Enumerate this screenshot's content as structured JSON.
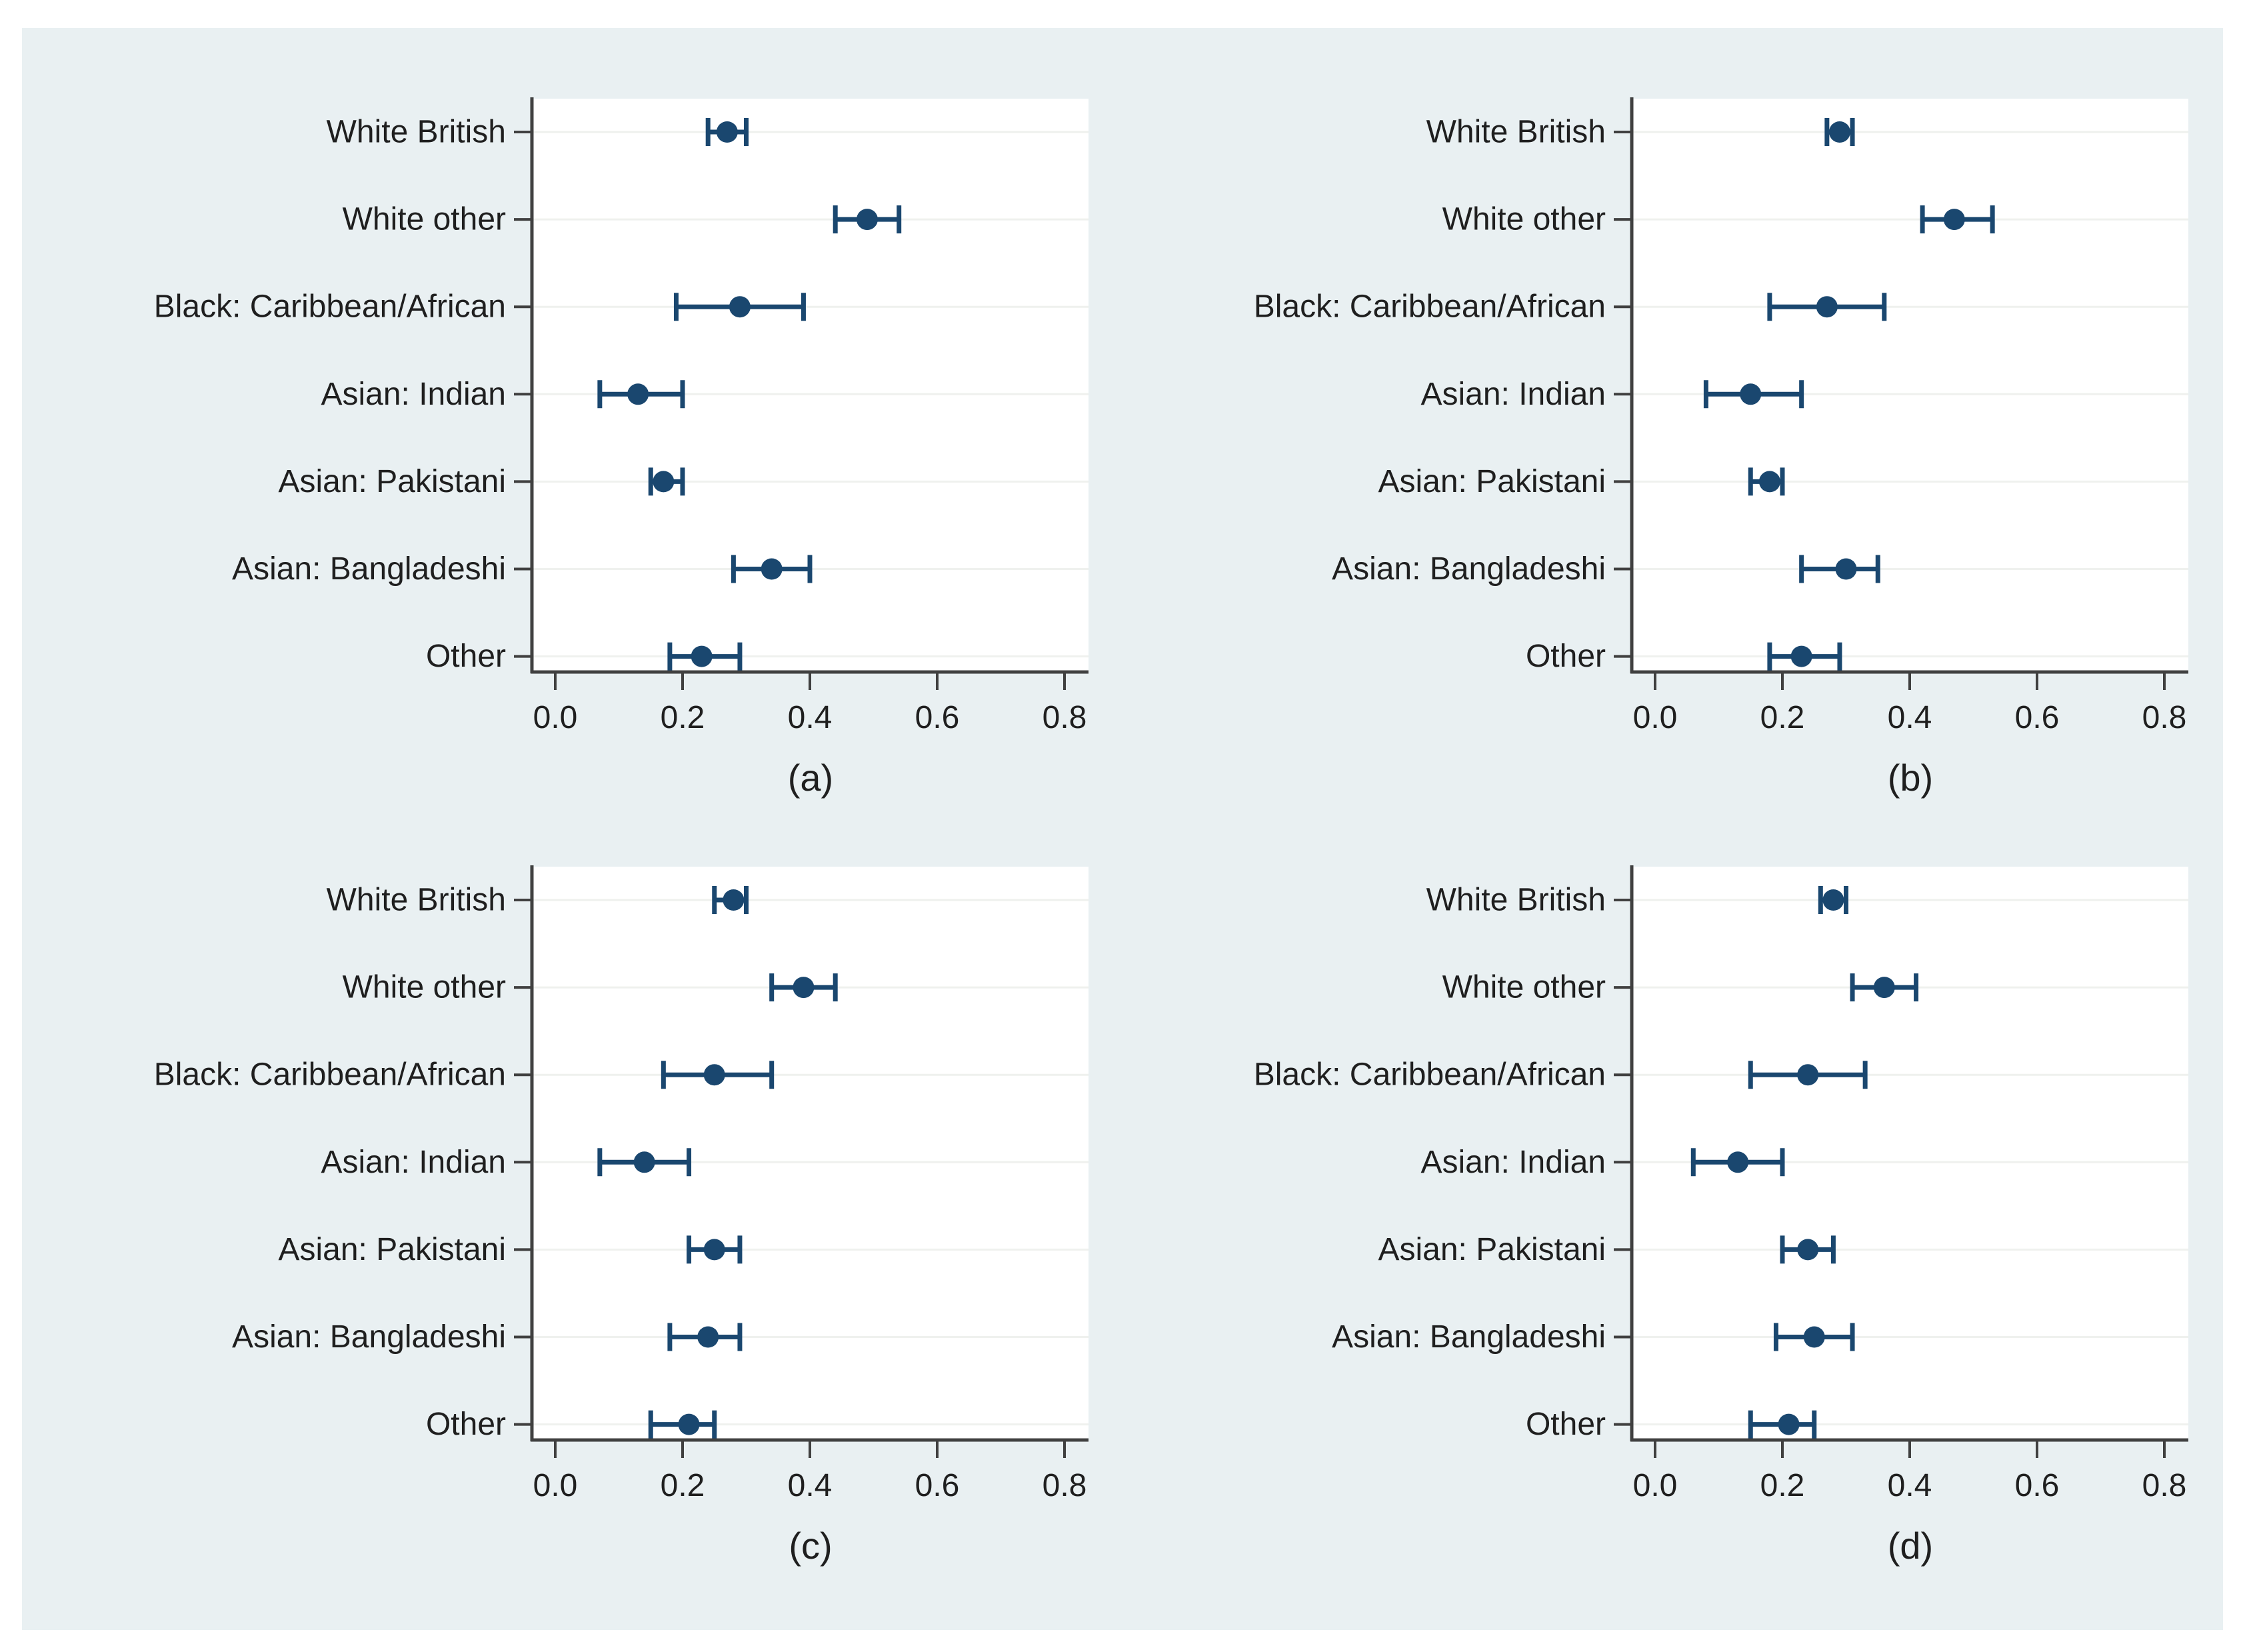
{
  "figure": {
    "description": "Four-panel horizontal dot plot with 95% confidence-interval error bars, one row per ethnic group",
    "panel_captions": [
      "(a)",
      "(b)",
      "(c)",
      "(d)"
    ]
  },
  "colors": {
    "page_background": "#ffffff",
    "figure_background": "#e9f0f2",
    "plot_background": "#ffffff",
    "grid_line": "#eff1ee",
    "axis_line": "#404040",
    "text": "#1f1f1f",
    "marker": "#1a476f"
  },
  "chart_data": [
    {
      "type": "scatter",
      "subtype": "dot-plot-with-ci-error-bars",
      "caption": "(a)",
      "orientation": "horizontal",
      "grid": "horizontal-light",
      "legend": "none",
      "xlim": [
        -0.04,
        0.84
      ],
      "x_tick_values": [
        0,
        0.2,
        0.4,
        0.6,
        0.8
      ],
      "x_tick_labels": [
        "0.0",
        "0.2",
        "0.4",
        "0.6",
        "0.8"
      ],
      "categories": [
        "White British",
        "White other",
        "Black: Caribbean/African",
        "Asian: Indian",
        "Asian: Pakistani",
        "Asian: Bangladeshi",
        "Other"
      ],
      "points": [
        {
          "category": "White British",
          "estimate": 0.27,
          "ci_low": 0.24,
          "ci_high": 0.3
        },
        {
          "category": "White other",
          "estimate": 0.49,
          "ci_low": 0.44,
          "ci_high": 0.54
        },
        {
          "category": "Black: Caribbean/African",
          "estimate": 0.29,
          "ci_low": 0.19,
          "ci_high": 0.39
        },
        {
          "category": "Asian: Indian",
          "estimate": 0.13,
          "ci_low": 0.07,
          "ci_high": 0.2
        },
        {
          "category": "Asian: Pakistani",
          "estimate": 0.17,
          "ci_low": 0.15,
          "ci_high": 0.2
        },
        {
          "category": "Asian: Bangladeshi",
          "estimate": 0.34,
          "ci_low": 0.28,
          "ci_high": 0.4
        },
        {
          "category": "Other",
          "estimate": 0.23,
          "ci_low": 0.18,
          "ci_high": 0.29
        }
      ]
    },
    {
      "type": "scatter",
      "subtype": "dot-plot-with-ci-error-bars",
      "caption": "(b)",
      "orientation": "horizontal",
      "grid": "horizontal-light",
      "legend": "none",
      "xlim": [
        -0.04,
        0.84
      ],
      "x_tick_values": [
        0,
        0.2,
        0.4,
        0.6,
        0.8
      ],
      "x_tick_labels": [
        "0.0",
        "0.2",
        "0.4",
        "0.6",
        "0.8"
      ],
      "categories": [
        "White British",
        "White other",
        "Black: Caribbean/African",
        "Asian: Indian",
        "Asian: Pakistani",
        "Asian: Bangladeshi",
        "Other"
      ],
      "points": [
        {
          "category": "White British",
          "estimate": 0.29,
          "ci_low": 0.27,
          "ci_high": 0.31
        },
        {
          "category": "White other",
          "estimate": 0.47,
          "ci_low": 0.42,
          "ci_high": 0.53
        },
        {
          "category": "Black: Caribbean/African",
          "estimate": 0.27,
          "ci_low": 0.18,
          "ci_high": 0.36
        },
        {
          "category": "Asian: Indian",
          "estimate": 0.15,
          "ci_low": 0.08,
          "ci_high": 0.23
        },
        {
          "category": "Asian: Pakistani",
          "estimate": 0.18,
          "ci_low": 0.15,
          "ci_high": 0.2
        },
        {
          "category": "Asian: Bangladeshi",
          "estimate": 0.3,
          "ci_low": 0.23,
          "ci_high": 0.35
        },
        {
          "category": "Other",
          "estimate": 0.23,
          "ci_low": 0.18,
          "ci_high": 0.29
        }
      ]
    },
    {
      "type": "scatter",
      "subtype": "dot-plot-with-ci-error-bars",
      "caption": "(c)",
      "orientation": "horizontal",
      "grid": "horizontal-light",
      "legend": "none",
      "xlim": [
        -0.04,
        0.84
      ],
      "x_tick_values": [
        0,
        0.2,
        0.4,
        0.6,
        0.8
      ],
      "x_tick_labels": [
        "0.0",
        "0.2",
        "0.4",
        "0.6",
        "0.8"
      ],
      "categories": [
        "White British",
        "White other",
        "Black: Caribbean/African",
        "Asian: Indian",
        "Asian: Pakistani",
        "Asian: Bangladeshi",
        "Other"
      ],
      "points": [
        {
          "category": "White British",
          "estimate": 0.28,
          "ci_low": 0.25,
          "ci_high": 0.3
        },
        {
          "category": "White other",
          "estimate": 0.39,
          "ci_low": 0.34,
          "ci_high": 0.44
        },
        {
          "category": "Black: Caribbean/African",
          "estimate": 0.25,
          "ci_low": 0.17,
          "ci_high": 0.34
        },
        {
          "category": "Asian: Indian",
          "estimate": 0.14,
          "ci_low": 0.07,
          "ci_high": 0.21
        },
        {
          "category": "Asian: Pakistani",
          "estimate": 0.25,
          "ci_low": 0.21,
          "ci_high": 0.29
        },
        {
          "category": "Asian: Bangladeshi",
          "estimate": 0.24,
          "ci_low": 0.18,
          "ci_high": 0.29
        },
        {
          "category": "Other",
          "estimate": 0.21,
          "ci_low": 0.15,
          "ci_high": 0.25
        }
      ]
    },
    {
      "type": "scatter",
      "subtype": "dot-plot-with-ci-error-bars",
      "caption": "(d)",
      "orientation": "horizontal",
      "grid": "horizontal-light",
      "legend": "none",
      "xlim": [
        -0.04,
        0.84
      ],
      "x_tick_values": [
        0,
        0.2,
        0.4,
        0.6,
        0.8
      ],
      "x_tick_labels": [
        "0.0",
        "0.2",
        "0.4",
        "0.6",
        "0.8"
      ],
      "categories": [
        "White British",
        "White other",
        "Black: Caribbean/African",
        "Asian: Indian",
        "Asian: Pakistani",
        "Asian: Bangladeshi",
        "Other"
      ],
      "points": [
        {
          "category": "White British",
          "estimate": 0.28,
          "ci_low": 0.26,
          "ci_high": 0.3
        },
        {
          "category": "White other",
          "estimate": 0.36,
          "ci_low": 0.31,
          "ci_high": 0.41
        },
        {
          "category": "Black: Caribbean/African",
          "estimate": 0.24,
          "ci_low": 0.15,
          "ci_high": 0.33
        },
        {
          "category": "Asian: Indian",
          "estimate": 0.13,
          "ci_low": 0.06,
          "ci_high": 0.2
        },
        {
          "category": "Asian: Pakistani",
          "estimate": 0.24,
          "ci_low": 0.2,
          "ci_high": 0.28
        },
        {
          "category": "Asian: Bangladeshi",
          "estimate": 0.25,
          "ci_low": 0.19,
          "ci_high": 0.31
        },
        {
          "category": "Other",
          "estimate": 0.21,
          "ci_low": 0.15,
          "ci_high": 0.25
        }
      ]
    }
  ]
}
